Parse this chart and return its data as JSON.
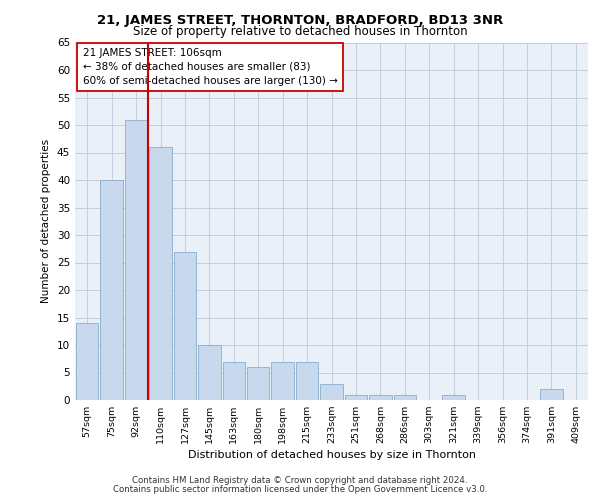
{
  "title": "21, JAMES STREET, THORNTON, BRADFORD, BD13 3NR",
  "subtitle": "Size of property relative to detached houses in Thornton",
  "xlabel": "Distribution of detached houses by size in Thornton",
  "ylabel": "Number of detached properties",
  "categories": [
    "57sqm",
    "75sqm",
    "92sqm",
    "110sqm",
    "127sqm",
    "145sqm",
    "163sqm",
    "180sqm",
    "198sqm",
    "215sqm",
    "233sqm",
    "251sqm",
    "268sqm",
    "286sqm",
    "303sqm",
    "321sqm",
    "339sqm",
    "356sqm",
    "374sqm",
    "391sqm",
    "409sqm"
  ],
  "values": [
    14,
    40,
    51,
    46,
    27,
    10,
    7,
    6,
    7,
    7,
    3,
    1,
    1,
    1,
    0,
    1,
    0,
    0,
    0,
    2,
    0
  ],
  "bar_color": "#c9d9ed",
  "bar_edge_color": "#7ba3c8",
  "vline_x": 2.5,
  "vline_color": "#cc0000",
  "annotation_line1": "21 JAMES STREET: 106sqm",
  "annotation_line2": "← 38% of detached houses are smaller (83)",
  "annotation_line3": "60% of semi-detached houses are larger (130) →",
  "annotation_box_color": "#ffffff",
  "annotation_box_edge": "#cc0000",
  "ylim": [
    0,
    65
  ],
  "yticks": [
    0,
    5,
    10,
    15,
    20,
    25,
    30,
    35,
    40,
    45,
    50,
    55,
    60,
    65
  ],
  "grid_color": "#c0c8d8",
  "bg_color": "#eaf0f8",
  "footer1": "Contains HM Land Registry data © Crown copyright and database right 2024.",
  "footer2": "Contains public sector information licensed under the Open Government Licence v3.0."
}
